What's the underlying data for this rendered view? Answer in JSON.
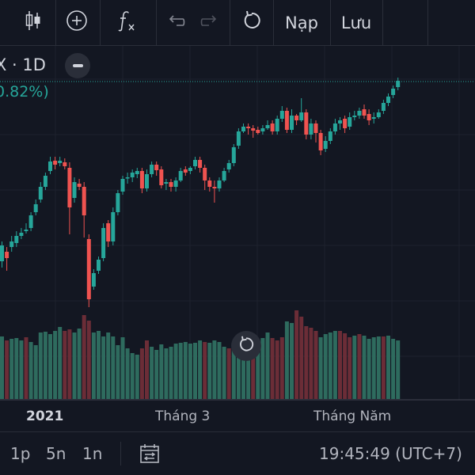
{
  "toolbar": {
    "load_label": "Nạp",
    "save_label": "Lưu"
  },
  "legend": {
    "symbol_interval": "X · 1D",
    "change_text": "0.82%)"
  },
  "time_axis": {
    "labels": [
      "2021",
      "Tháng 3",
      "Tháng Năm"
    ]
  },
  "bottom_bar": {
    "timeframes": [
      "1p",
      "5n",
      "1n"
    ],
    "clock": "19:45:49 (UTC+7)"
  },
  "colors": {
    "background": "#131722",
    "up": "#26a69a",
    "down": "#ef5350",
    "volume_up": "#2e6b5e",
    "volume_down": "#6b2d37",
    "text": "#d1d4dc"
  },
  "chart_data": {
    "type": "candlestick",
    "candles": [
      [
        330,
        310,
        305,
        338,
        "u"
      ],
      [
        318,
        326,
        312,
        342,
        "d"
      ],
      [
        312,
        305,
        298,
        318,
        "u"
      ],
      [
        307,
        298,
        292,
        312,
        "u"
      ],
      [
        298,
        294,
        288,
        302,
        "u"
      ],
      [
        292,
        290,
        282,
        295,
        "u"
      ],
      [
        288,
        272,
        268,
        292,
        "u"
      ],
      [
        268,
        258,
        252,
        272,
        "u"
      ],
      [
        252,
        236,
        230,
        256,
        "u"
      ],
      [
        236,
        222,
        218,
        240,
        "u"
      ],
      [
        216,
        204,
        198,
        220,
        "u"
      ],
      [
        208,
        203,
        198,
        214,
        "d"
      ],
      [
        206,
        203,
        198,
        210,
        "u"
      ],
      [
        205,
        210,
        200,
        214,
        "d"
      ],
      [
        212,
        262,
        205,
        296,
        "d"
      ],
      [
        250,
        230,
        224,
        256,
        "u"
      ],
      [
        232,
        236,
        226,
        240,
        "d"
      ],
      [
        236,
        272,
        230,
        300,
        "d"
      ],
      [
        302,
        378,
        296,
        388,
        "d"
      ],
      [
        362,
        345,
        340,
        366,
        "u"
      ],
      [
        342,
        328,
        324,
        346,
        "u"
      ],
      [
        326,
        288,
        282,
        330,
        "u"
      ],
      [
        282,
        305,
        278,
        312,
        "d"
      ],
      [
        305,
        268,
        262,
        310,
        "u"
      ],
      [
        268,
        244,
        240,
        272,
        "u"
      ],
      [
        242,
        226,
        222,
        246,
        "u"
      ],
      [
        224,
        224,
        218,
        232,
        "u"
      ],
      [
        224,
        218,
        214,
        230,
        "u"
      ],
      [
        220,
        216,
        212,
        225,
        "u"
      ],
      [
        216,
        238,
        212,
        244,
        "d"
      ],
      [
        238,
        220,
        214,
        242,
        "u"
      ],
      [
        220,
        208,
        204,
        224,
        "u"
      ],
      [
        208,
        215,
        204,
        222,
        "d"
      ],
      [
        214,
        234,
        210,
        238,
        "d"
      ],
      [
        232,
        230,
        226,
        240,
        "u"
      ],
      [
        230,
        236,
        226,
        242,
        "d"
      ],
      [
        236,
        228,
        224,
        242,
        "u"
      ],
      [
        228,
        216,
        212,
        230,
        "u"
      ],
      [
        214,
        218,
        210,
        222,
        "d"
      ],
      [
        216,
        212,
        210,
        220,
        "u"
      ],
      [
        210,
        202,
        198,
        214,
        "u"
      ],
      [
        202,
        212,
        198,
        218,
        "d"
      ],
      [
        212,
        228,
        208,
        240,
        "d"
      ],
      [
        228,
        236,
        224,
        242,
        "d"
      ],
      [
        236,
        238,
        228,
        256,
        "d"
      ],
      [
        238,
        228,
        224,
        242,
        "u"
      ],
      [
        228,
        216,
        212,
        230,
        "u"
      ],
      [
        214,
        206,
        202,
        218,
        "u"
      ],
      [
        206,
        186,
        182,
        210,
        "u"
      ],
      [
        184,
        166,
        162,
        188,
        "u"
      ],
      [
        166,
        160,
        156,
        168,
        "u"
      ],
      [
        160,
        162,
        156,
        170,
        "d"
      ],
      [
        162,
        165,
        158,
        174,
        "d"
      ],
      [
        164,
        168,
        160,
        170,
        "d"
      ],
      [
        166,
        162,
        158,
        170,
        "u"
      ],
      [
        162,
        158,
        152,
        164,
        "u"
      ],
      [
        156,
        166,
        152,
        170,
        "d"
      ],
      [
        166,
        150,
        146,
        170,
        "u"
      ],
      [
        150,
        140,
        134,
        154,
        "u"
      ],
      [
        140,
        164,
        136,
        168,
        "d"
      ],
      [
        164,
        146,
        138,
        168,
        "u"
      ],
      [
        146,
        152,
        144,
        158,
        "d"
      ],
      [
        152,
        142,
        124,
        154,
        "u"
      ],
      [
        142,
        170,
        138,
        176,
        "d"
      ],
      [
        170,
        156,
        150,
        176,
        "u"
      ],
      [
        156,
        168,
        152,
        180,
        "d"
      ],
      [
        168,
        190,
        164,
        196,
        "d"
      ],
      [
        188,
        178,
        172,
        192,
        "u"
      ],
      [
        178,
        166,
        162,
        182,
        "u"
      ],
      [
        166,
        156,
        150,
        170,
        "u"
      ],
      [
        156,
        152,
        148,
        164,
        "u"
      ],
      [
        150,
        162,
        146,
        168,
        "d"
      ],
      [
        160,
        148,
        142,
        164,
        "u"
      ],
      [
        148,
        146,
        140,
        152,
        "u"
      ],
      [
        146,
        140,
        136,
        150,
        "u"
      ],
      [
        138,
        146,
        132,
        150,
        "d"
      ],
      [
        144,
        152,
        138,
        158,
        "d"
      ],
      [
        150,
        148,
        142,
        156,
        "u"
      ],
      [
        148,
        142,
        138,
        150,
        "u"
      ],
      [
        140,
        130,
        126,
        144,
        "u"
      ],
      [
        130,
        122,
        118,
        134,
        "u"
      ],
      [
        120,
        112,
        108,
        124,
        "u"
      ],
      [
        110,
        102,
        98,
        114,
        "u"
      ]
    ],
    "volume": [
      [
        425,
        "u"
      ],
      [
        430,
        "d"
      ],
      [
        428,
        "u"
      ],
      [
        427,
        "u"
      ],
      [
        430,
        "u"
      ],
      [
        426,
        "d"
      ],
      [
        432,
        "u"
      ],
      [
        436,
        "u"
      ],
      [
        420,
        "u"
      ],
      [
        419,
        "u"
      ],
      [
        422,
        "u"
      ],
      [
        418,
        "u"
      ],
      [
        413,
        "u"
      ],
      [
        418,
        "d"
      ],
      [
        416,
        "d"
      ],
      [
        420,
        "u"
      ],
      [
        415,
        "u"
      ],
      [
        398,
        "d"
      ],
      [
        405,
        "d"
      ],
      [
        420,
        "u"
      ],
      [
        418,
        "u"
      ],
      [
        425,
        "u"
      ],
      [
        420,
        "u"
      ],
      [
        425,
        "u"
      ],
      [
        436,
        "u"
      ],
      [
        426,
        "u"
      ],
      [
        440,
        "u"
      ],
      [
        446,
        "u"
      ],
      [
        448,
        "u"
      ],
      [
        440,
        "d"
      ],
      [
        430,
        "d"
      ],
      [
        438,
        "u"
      ],
      [
        442,
        "u"
      ],
      [
        435,
        "u"
      ],
      [
        440,
        "u"
      ],
      [
        438,
        "u"
      ],
      [
        434,
        "u"
      ],
      [
        433,
        "u"
      ],
      [
        432,
        "u"
      ],
      [
        434,
        "u"
      ],
      [
        433,
        "u"
      ],
      [
        430,
        "u"
      ],
      [
        432,
        "d"
      ],
      [
        433,
        "u"
      ],
      [
        430,
        "u"
      ],
      [
        432,
        "u"
      ],
      [
        438,
        "u"
      ],
      [
        440,
        "d"
      ],
      [
        436,
        "u"
      ],
      [
        426,
        "u"
      ],
      [
        428,
        "u"
      ],
      [
        432,
        "u"
      ],
      [
        428,
        "d"
      ],
      [
        430,
        "u"
      ],
      [
        427,
        "u"
      ],
      [
        420,
        "u"
      ],
      [
        427,
        "d"
      ],
      [
        430,
        "d"
      ],
      [
        426,
        "d"
      ],
      [
        406,
        "u"
      ],
      [
        408,
        "u"
      ],
      [
        392,
        "d"
      ],
      [
        400,
        "d"
      ],
      [
        412,
        "d"
      ],
      [
        414,
        "d"
      ],
      [
        418,
        "d"
      ],
      [
        426,
        "u"
      ],
      [
        422,
        "u"
      ],
      [
        420,
        "u"
      ],
      [
        418,
        "u"
      ],
      [
        418,
        "d"
      ],
      [
        421,
        "d"
      ],
      [
        426,
        "d"
      ],
      [
        424,
        "u"
      ],
      [
        422,
        "d"
      ],
      [
        424,
        "u"
      ],
      [
        428,
        "u"
      ],
      [
        426,
        "u"
      ],
      [
        425,
        "u"
      ],
      [
        425,
        "d"
      ],
      [
        424,
        "u"
      ],
      [
        428,
        "u"
      ],
      [
        430,
        "u"
      ]
    ]
  }
}
